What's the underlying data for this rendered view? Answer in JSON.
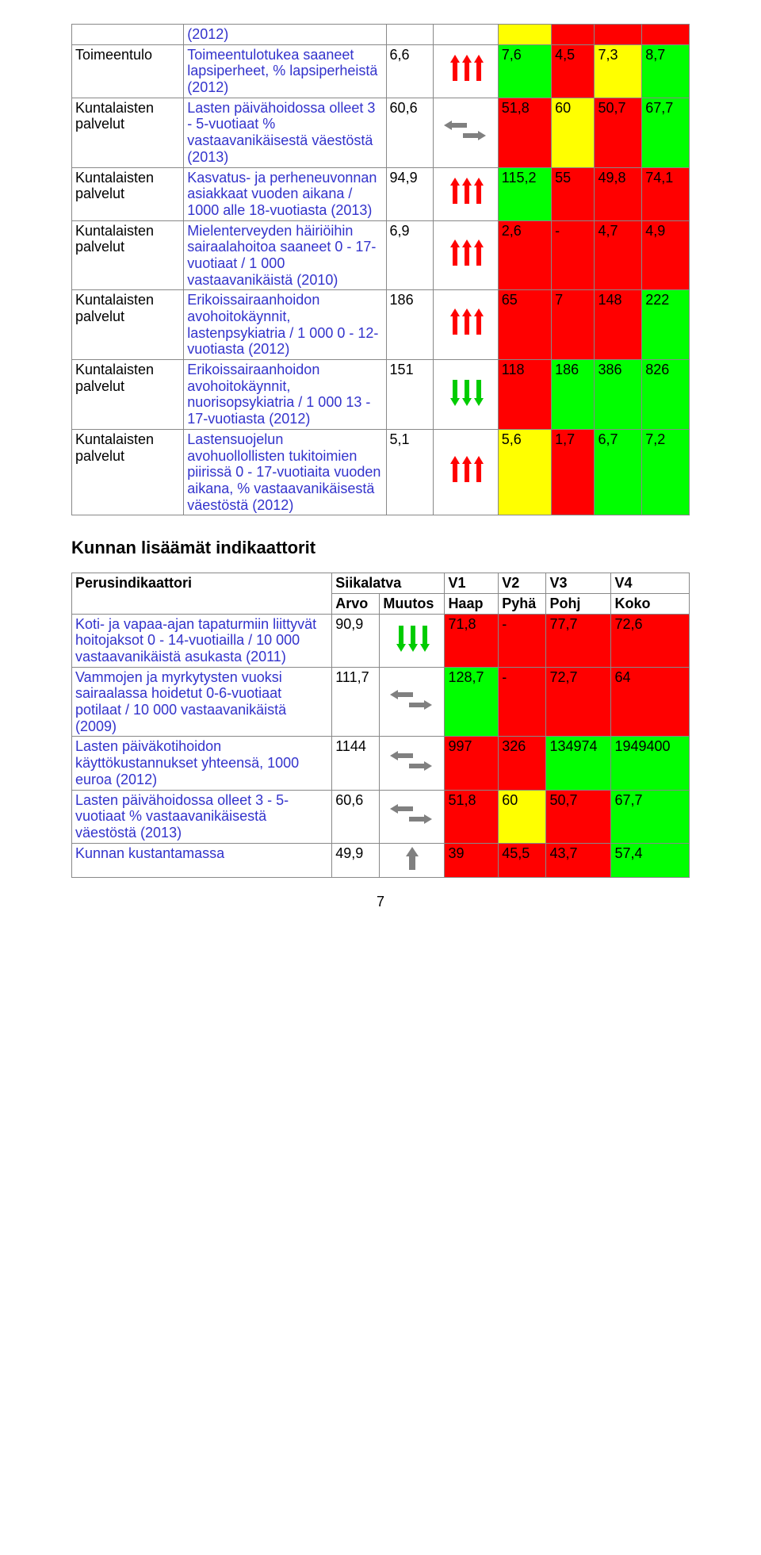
{
  "colors": {
    "red": "#ff0000",
    "green": "#00ff00",
    "yellow": "#ffff00",
    "white": "#ffffff",
    "link": "#3333cc",
    "border": "#888888",
    "arrow_red": "#ff0000",
    "arrow_green": "#00cc00",
    "arrow_grey": "#808080"
  },
  "table1": {
    "top_row": {
      "desc": "(2012)",
      "cells": [
        {
          "bg": "white"
        },
        {
          "bg": "white"
        },
        {
          "bg": "yellow"
        },
        {
          "bg": "red"
        },
        {
          "bg": "red"
        },
        {
          "bg": "red"
        }
      ]
    },
    "rows": [
      {
        "cat": "Toimeentulo",
        "desc": "Toimeentulotukea saaneet lapsiperheet, % lapsiperheistä (2012)",
        "arvo": "6,6",
        "arrow": "red-up",
        "vals": [
          {
            "v": "7,6",
            "bg": "green"
          },
          {
            "v": "4,5",
            "bg": "red"
          },
          {
            "v": "7,3",
            "bg": "yellow"
          },
          {
            "v": "8,7",
            "bg": "green"
          }
        ]
      },
      {
        "cat": "Kuntalaisten palvelut",
        "desc": "Lasten päivähoidossa olleet 3 - 5-vuotiaat % vastaavanikäisestä väestöstä (2013)",
        "arvo": "60,6",
        "arrow": "grey-lr",
        "vals": [
          {
            "v": "51,8",
            "bg": "red"
          },
          {
            "v": "60",
            "bg": "yellow"
          },
          {
            "v": "50,7",
            "bg": "red"
          },
          {
            "v": "67,7",
            "bg": "green"
          }
        ]
      },
      {
        "cat": "Kuntalaisten palvelut",
        "desc": "Kasvatus- ja perheneuvonnan asiakkaat vuoden aikana / 1000 alle 18-vuotiasta (2013)",
        "arvo": "94,9",
        "arrow": "red-up",
        "vals": [
          {
            "v": "115,2",
            "bg": "green"
          },
          {
            "v": "55",
            "bg": "red"
          },
          {
            "v": "49,8",
            "bg": "red"
          },
          {
            "v": "74,1",
            "bg": "red"
          }
        ]
      },
      {
        "cat": "Kuntalaisten palvelut",
        "desc": "Mielenterveyden häiriöihin sairaalahoitoa saaneet 0 - 17-vuotiaat / 1 000 vastaavanikäistä (2010)",
        "arvo": "6,9",
        "arrow": "red-up",
        "vals": [
          {
            "v": "2,6",
            "bg": "red"
          },
          {
            "v": "-",
            "bg": "red"
          },
          {
            "v": "4,7",
            "bg": "red"
          },
          {
            "v": "4,9",
            "bg": "red"
          }
        ]
      },
      {
        "cat": "Kuntalaisten palvelut",
        "desc": "Erikoissairaanhoidon avohoitokäynnit, lastenpsykiatria / 1 000 0 - 12-vuotiasta (2012)",
        "arvo": "186",
        "arrow": "red-up",
        "vals": [
          {
            "v": "65",
            "bg": "red"
          },
          {
            "v": "7",
            "bg": "red"
          },
          {
            "v": "148",
            "bg": "red"
          },
          {
            "v": "222",
            "bg": "green"
          }
        ]
      },
      {
        "cat": "Kuntalaisten palvelut",
        "desc": "Erikoissairaanhoidon avohoitokäynnit, nuorisopsykiatria / 1 000 13 - 17-vuotiasta (2012)",
        "arvo": "151",
        "arrow": "green-down",
        "vals": [
          {
            "v": "118",
            "bg": "red"
          },
          {
            "v": "186",
            "bg": "green"
          },
          {
            "v": "386",
            "bg": "green"
          },
          {
            "v": "826",
            "bg": "green"
          }
        ]
      },
      {
        "cat": "Kuntalaisten palvelut",
        "desc": "Lastensuojelun avohuollollisten tukitoimien piirissä 0 - 17-vuotiaita vuoden aikana, % vastaavanikäisestä väestöstä (2012)",
        "arvo": "5,1",
        "arrow": "red-up",
        "vals": [
          {
            "v": "5,6",
            "bg": "yellow"
          },
          {
            "v": "1,7",
            "bg": "red"
          },
          {
            "v": "6,7",
            "bg": "green"
          },
          {
            "v": "7,2",
            "bg": "green"
          }
        ]
      }
    ]
  },
  "section_title": "Kunnan lisäämät indikaattorit",
  "table2": {
    "headers": {
      "perus": "Perusindikaattori",
      "siika": "Siikalatva",
      "arvo": "Arvo",
      "muutos": "Muutos",
      "v1": "V1",
      "v2": "V2",
      "v3": "V3",
      "v4": "V4",
      "haap": "Haap",
      "pyha": "Pyhä",
      "pohj": "Pohj",
      "koko": "Koko"
    },
    "rows": [
      {
        "desc": "Koti- ja vapaa-ajan tapaturmiin liittyvät hoitojaksot 0 - 14-vuotiailla / 10 000 vastaavanikäistä asukasta (2011)",
        "arvo": "90,9",
        "arrow": "green-down",
        "vals": [
          {
            "v": "71,8",
            "bg": "red"
          },
          {
            "v": "-",
            "bg": "red"
          },
          {
            "v": "77,7",
            "bg": "red"
          },
          {
            "v": "72,6",
            "bg": "red"
          }
        ]
      },
      {
        "desc": "Vammojen ja myrkytysten vuoksi sairaalassa hoidetut 0-6-vuotiaat potilaat / 10 000 vastaavanikäistä (2009)",
        "arvo": "111,7",
        "arrow": "grey-lr",
        "vals": [
          {
            "v": "128,7",
            "bg": "green"
          },
          {
            "v": "-",
            "bg": "red"
          },
          {
            "v": "72,7",
            "bg": "red"
          },
          {
            "v": "64",
            "bg": "red"
          }
        ]
      },
      {
        "desc": "Lasten päiväkotihoidon käyttökustannukset yhteensä, 1000 euroa (2012)",
        "arvo": "1144",
        "arrow": "grey-lr",
        "vals": [
          {
            "v": "997",
            "bg": "red"
          },
          {
            "v": "326",
            "bg": "red"
          },
          {
            "v": "134974",
            "bg": "green"
          },
          {
            "v": "1949400",
            "bg": "green"
          }
        ]
      },
      {
        "desc": "Lasten päivähoidossa olleet 3 - 5-vuotiaat % vastaavanikäisestä väestöstä (2013)",
        "arvo": "60,6",
        "arrow": "grey-lr",
        "vals": [
          {
            "v": "51,8",
            "bg": "red"
          },
          {
            "v": "60",
            "bg": "yellow"
          },
          {
            "v": "50,7",
            "bg": "red"
          },
          {
            "v": "67,7",
            "bg": "green"
          }
        ]
      },
      {
        "desc": "Kunnan kustantamassa",
        "arvo": "49,9",
        "arrow": "grey-up",
        "vals": [
          {
            "v": "39",
            "bg": "red"
          },
          {
            "v": "45,5",
            "bg": "red"
          },
          {
            "v": "43,7",
            "bg": "red"
          },
          {
            "v": "57,4",
            "bg": "green"
          }
        ]
      }
    ]
  },
  "pagenum": "7"
}
